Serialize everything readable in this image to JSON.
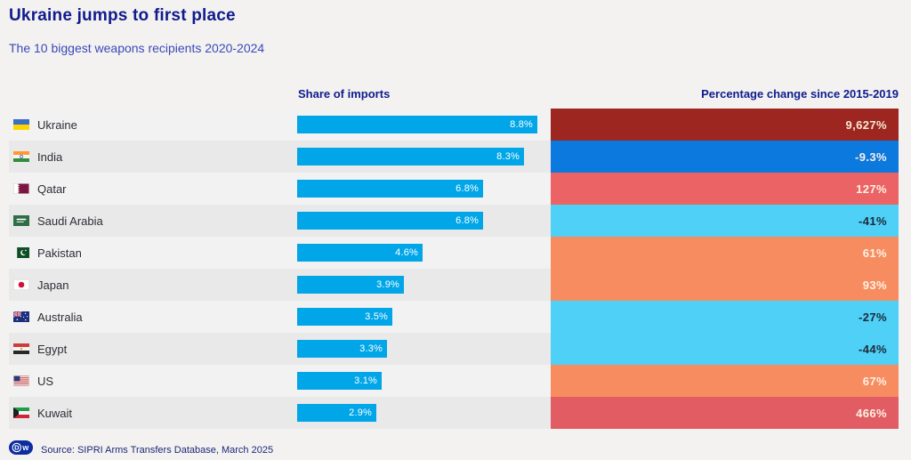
{
  "header": {
    "title": "Ukraine jumps to first place",
    "subtitle": "The 10 biggest weapons recipients 2020-2024"
  },
  "columns": {
    "share": "Share of imports",
    "change": "Percentage change since 2015-2019"
  },
  "footer": {
    "source": "Source: SIPRI Arms Transfers Database, March 2025",
    "logo_d": "D",
    "logo_w": "w"
  },
  "colors": {
    "bar": "#00a6e8",
    "title_navy": "#101b8d",
    "subtitle_blue": "#3a49b8",
    "row_band": "#eae9e9",
    "dark_red": "#9e2621",
    "blue": "#0b79dd",
    "salmon": "#ec6365",
    "light_blue": "#4ed0f7",
    "orange": "#f78c60",
    "medium_red": "#e15c63"
  },
  "chart_data": {
    "type": "bar",
    "title": "Ukraine jumps to first place",
    "subtitle": "The 10 biggest weapons recipients 2020-2024",
    "categories": [
      "Ukraine",
      "India",
      "Qatar",
      "Saudi Arabia",
      "Pakistan",
      "Japan",
      "Australia",
      "Egypt",
      "US",
      "Kuwait"
    ],
    "series": [
      {
        "name": "Share of imports",
        "unit": "%",
        "values": [
          8.8,
          8.3,
          6.8,
          6.8,
          4.6,
          3.9,
          3.5,
          3.3,
          3.1,
          2.9
        ]
      },
      {
        "name": "Percentage change since 2015-2019",
        "unit": "%",
        "values": [
          9627,
          -9.3,
          127,
          -41,
          61,
          93,
          -27,
          -44,
          67,
          466
        ]
      }
    ],
    "xlabel": "",
    "ylabel": "",
    "share_axis_range": [
      0,
      8.8
    ],
    "grid": false,
    "legend": false,
    "source": "Source: SIPRI Arms Transfers Database, March 2025"
  },
  "rows": [
    {
      "country": "Ukraine",
      "share": 8.8,
      "share_label": "8.8%",
      "change_label": "9,627%",
      "change_bg": "#9e2621",
      "change_text": "#f6e8d4"
    },
    {
      "country": "India",
      "share": 8.3,
      "share_label": "8.3%",
      "change_label": "-9.3%",
      "change_bg": "#0b79dd",
      "change_text": "#fbeee9"
    },
    {
      "country": "Qatar",
      "share": 6.8,
      "share_label": "6.8%",
      "change_label": "127%",
      "change_bg": "#ec6365",
      "change_text": "#fdf2e4"
    },
    {
      "country": "Saudi Arabia",
      "share": 6.8,
      "share_label": "6.8%",
      "change_label": "-41%",
      "change_bg": "#4ed0f7",
      "change_text": "#1f2937"
    },
    {
      "country": "Pakistan",
      "share": 4.6,
      "share_label": "4.6%",
      "change_label": "61%",
      "change_bg": "#f78c60",
      "change_text": "#fdf2e4"
    },
    {
      "country": "Japan",
      "share": 3.9,
      "share_label": "3.9%",
      "change_label": "93%",
      "change_bg": "#f78c60",
      "change_text": "#fdf2e4"
    },
    {
      "country": "Australia",
      "share": 3.5,
      "share_label": "3.5%",
      "change_label": "-27%",
      "change_bg": "#4ed0f7",
      "change_text": "#1f2937"
    },
    {
      "country": "Egypt",
      "share": 3.3,
      "share_label": "3.3%",
      "change_label": "-44%",
      "change_bg": "#4ed0f7",
      "change_text": "#1f2937"
    },
    {
      "country": "US",
      "share": 3.1,
      "share_label": "3.1%",
      "change_label": "67%",
      "change_bg": "#f78c60",
      "change_text": "#fdf2e4"
    },
    {
      "country": "Kuwait",
      "share": 2.9,
      "share_label": "2.9%",
      "change_label": "466%",
      "change_bg": "#e15c63",
      "change_text": "#fdf2e4"
    }
  ]
}
